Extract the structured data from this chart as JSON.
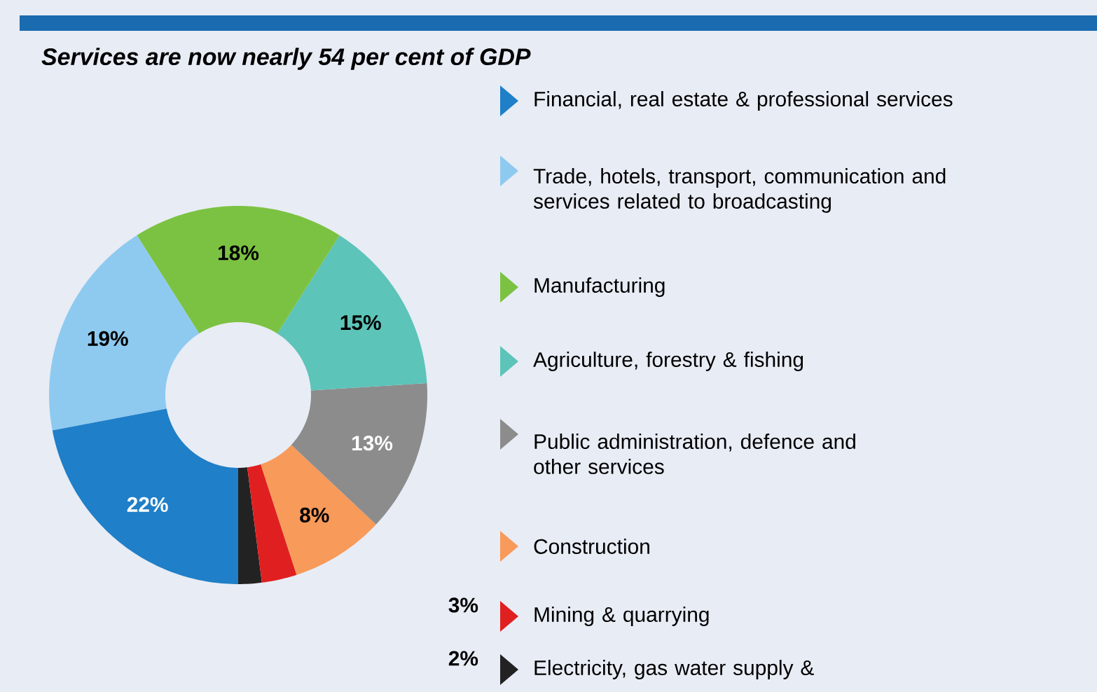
{
  "chart_data": {
    "type": "donut",
    "title": "Services are now nearly 54 per cent of GDP",
    "categories": [
      "Financial, real estate & professional services",
      "Trade, hotels, transport, communication and services related to broadcasting",
      "Manufacturing",
      "Agriculture, forestry & fishing",
      "Public administration, defence and other services",
      "Construction",
      "Mining & quarrying",
      "Electricity, gas water supply &"
    ],
    "values": [
      22,
      19,
      18,
      15,
      13,
      8,
      3,
      2
    ],
    "colors": [
      "#1f7fc8",
      "#8ecaf0",
      "#7cc242",
      "#5cc4b8",
      "#8c8c8c",
      "#f79a5a",
      "#e02020",
      "#222222"
    ],
    "value_labels": [
      "22%",
      "19%",
      "18%",
      "15%",
      "13%",
      "8%",
      "3%",
      "2%"
    ],
    "legend": "right"
  }
}
